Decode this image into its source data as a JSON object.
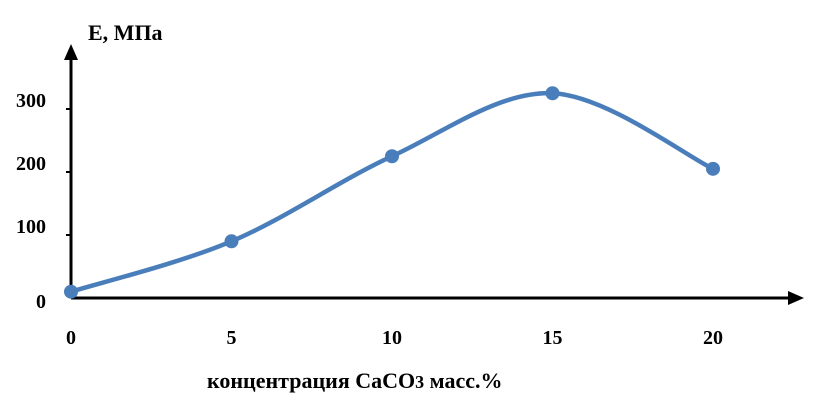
{
  "chart_data": {
    "type": "line",
    "title": "",
    "xlabel": "концентрация  CaCO3 масс.%",
    "ylabel": "E, МПа",
    "x": [
      0,
      5,
      10,
      15,
      20
    ],
    "series": [
      {
        "values": [
          10,
          90,
          225,
          325,
          205
        ]
      }
    ],
    "xticks": [
      "0",
      "5",
      "10",
      "15",
      "20"
    ],
    "yticks": [
      "0",
      "100",
      "200",
      "300"
    ],
    "xlim": [
      0,
      20
    ],
    "ylim": [
      0,
      300
    ],
    "smooth": true,
    "markers": true,
    "grid": false,
    "legend": "none",
    "line_color": "#4a7ebb",
    "axis_color": "#000000"
  }
}
